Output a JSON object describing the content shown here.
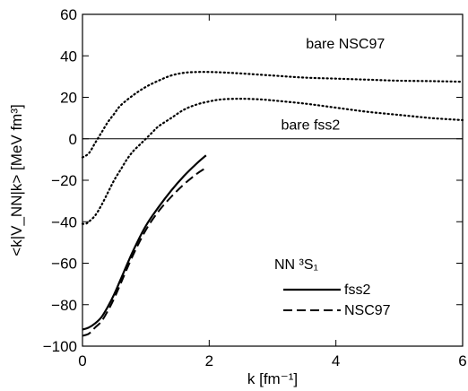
{
  "chart_data": {
    "type": "line",
    "title": "",
    "xlabel": "k [fm⁻¹]",
    "ylabel": "<k|V_NN|k> [MeV fm³]",
    "xlim": [
      0,
      6
    ],
    "ylim": [
      -100,
      60
    ],
    "xticks": [
      0,
      2,
      4,
      6
    ],
    "yticks": [
      -100,
      -80,
      -60,
      -40,
      -20,
      0,
      20,
      40,
      60
    ],
    "grid": false,
    "zero_line": true,
    "annotations": [
      "bare NSC97",
      "bare fss2"
    ],
    "legend": {
      "title": "NN ³S₁",
      "placement": "bottom-center",
      "entries": [
        "fss2",
        "NSC97"
      ]
    },
    "series": [
      {
        "name": "bare NSC97",
        "style": "dotted",
        "x": [
          0,
          0.1,
          0.2,
          0.3,
          0.4,
          0.5,
          0.6,
          0.8,
          1.0,
          1.2,
          1.4,
          1.6,
          1.8,
          2.0,
          2.2,
          2.5,
          3.0,
          3.5,
          4.0,
          4.5,
          5.0,
          5.5,
          6.0
        ],
        "y": [
          -9,
          -7,
          -2,
          3,
          8,
          12,
          16,
          21,
          25,
          28,
          30.5,
          31.8,
          32.2,
          32.2,
          32,
          31.5,
          30.5,
          29.5,
          29,
          28.5,
          28,
          27.8,
          27.5
        ]
      },
      {
        "name": "bare fss2",
        "style": "dotted",
        "x": [
          0,
          0.05,
          0.1,
          0.2,
          0.3,
          0.4,
          0.5,
          0.6,
          0.7,
          0.8,
          0.9,
          1.0,
          1.1,
          1.2,
          1.4,
          1.6,
          1.8,
          2.0,
          2.2,
          2.5,
          2.8,
          3.0,
          3.5,
          4.0,
          4.5,
          5.0,
          5.5,
          6.0
        ],
        "y": [
          -41,
          -41,
          -40,
          -37,
          -32,
          -26,
          -20,
          -15,
          -10,
          -6,
          -3,
          0,
          3,
          6,
          10,
          14,
          16.5,
          18,
          19,
          19.3,
          19,
          18.5,
          17,
          15,
          13,
          11.5,
          10,
          9
        ]
      },
      {
        "name": "fss2",
        "style": "solid",
        "x": [
          0,
          0.1,
          0.2,
          0.3,
          0.4,
          0.5,
          0.6,
          0.8,
          1.0,
          1.2,
          1.4,
          1.6,
          1.8,
          1.95
        ],
        "y": [
          -92,
          -91,
          -89,
          -86,
          -81,
          -75,
          -68,
          -54,
          -42,
          -33,
          -25,
          -18,
          -12,
          -8
        ]
      },
      {
        "name": "NSC97",
        "style": "dashed",
        "x": [
          0,
          0.1,
          0.2,
          0.3,
          0.4,
          0.5,
          0.6,
          0.8,
          1.0,
          1.2,
          1.4,
          1.6,
          1.8,
          1.95
        ],
        "y": [
          -95,
          -94,
          -91,
          -88,
          -83,
          -77,
          -70,
          -56,
          -44,
          -35,
          -28,
          -22,
          -17,
          -14
        ]
      }
    ]
  }
}
